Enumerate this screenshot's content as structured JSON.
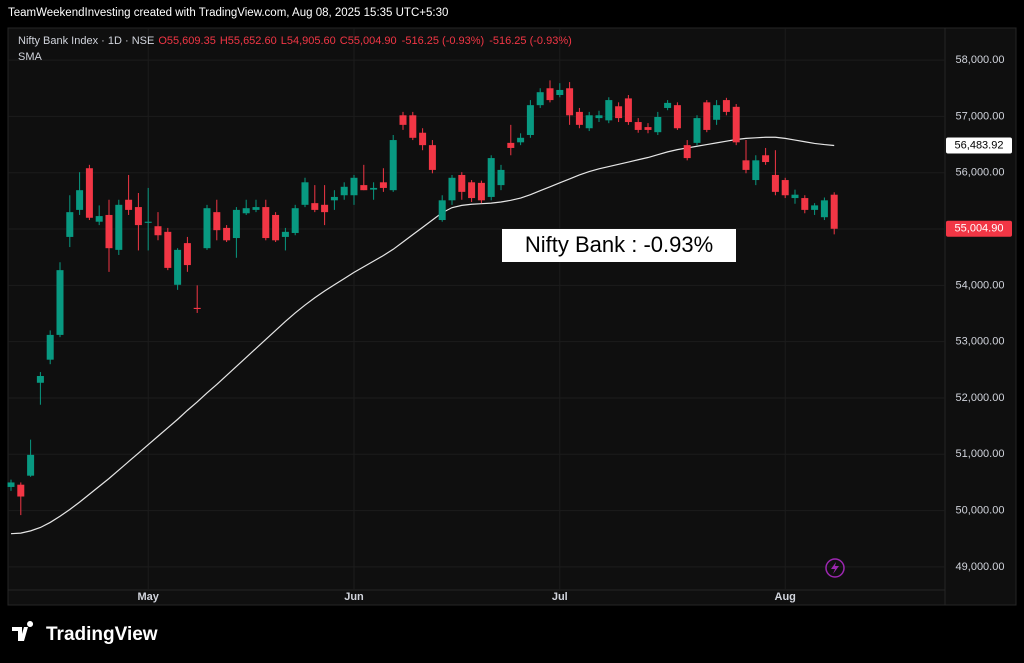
{
  "header": "TeamWeekendInvesting created with TradingView.com, Aug 08, 2025 15:35 UTC+5:30",
  "brand": "TradingView",
  "chart_data": {
    "type": "candlestick",
    "legend": {
      "title": "Nifty Bank Index · 1D · NSE",
      "open": "O55,609.35",
      "high": "H55,652.60",
      "low": "L54,905.60",
      "close": "C55,004.90",
      "change": "-516.25 (-0.93%)",
      "change_repeat": "-516.25 (-0.93%)"
    },
    "annotation": "Nifty Bank : -0.93%",
    "up_color": "#089981",
    "down_color": "#f23645",
    "grid": true,
    "categories": [
      null,
      null,
      null,
      null,
      null,
      null,
      null,
      null,
      null,
      null,
      null,
      null,
      null,
      null,
      "May",
      null,
      null,
      null,
      null,
      null,
      null,
      null,
      null,
      null,
      null,
      null,
      null,
      null,
      null,
      null,
      null,
      null,
      null,
      null,
      null,
      "Jun",
      null,
      null,
      null,
      null,
      null,
      null,
      null,
      null,
      null,
      null,
      null,
      null,
      null,
      null,
      null,
      null,
      null,
      null,
      null,
      null,
      "Jul",
      null,
      null,
      null,
      null,
      null,
      null,
      null,
      null,
      null,
      null,
      null,
      null,
      null,
      null,
      null,
      null,
      null,
      null,
      null,
      null,
      null,
      null,
      "Aug",
      null,
      null,
      null,
      null,
      null
    ],
    "open": [
      50420,
      50460,
      50620,
      52270,
      52680,
      53120,
      54860,
      55340,
      56080,
      55130,
      55250,
      54630,
      55520,
      55390,
      55110,
      55050,
      54950,
      54010,
      54750,
      53600,
      54660,
      55300,
      55020,
      54840,
      55280,
      55340,
      55390,
      55250,
      54860,
      54930,
      55430,
      55460,
      55430,
      55510,
      55600,
      55600,
      55780,
      55700,
      55830,
      55690,
      57020,
      57020,
      56710,
      56490,
      55160,
      55510,
      55960,
      55830,
      55820,
      55570,
      55780,
      56530,
      56540,
      56670,
      57200,
      57500,
      57380,
      57500,
      57080,
      56790,
      56970,
      56930,
      57180,
      57320,
      56900,
      56810,
      56720,
      57150,
      57200,
      56490,
      56530,
      57250,
      56940,
      57290,
      57170,
      56220,
      55870,
      56310,
      55960,
      55870,
      55550,
      55550,
      55340,
      55210,
      55609.35
    ],
    "high": [
      50550,
      50500,
      51260,
      52460,
      53200,
      54410,
      55600,
      56010,
      56140,
      55420,
      55520,
      55520,
      55960,
      55640,
      55730,
      55300,
      55020,
      54660,
      54860,
      54000,
      55430,
      55520,
      55070,
      55390,
      55520,
      55520,
      55520,
      55300,
      55020,
      55430,
      55910,
      55780,
      55780,
      55690,
      55830,
      55960,
      56140,
      55830,
      56080,
      56670,
      57080,
      57080,
      56790,
      56580,
      55600,
      55960,
      56010,
      55870,
      55860,
      56310,
      56140,
      56850,
      56700,
      57290,
      57500,
      57640,
      57590,
      57610,
      57150,
      57080,
      57100,
      57340,
      57250,
      57380,
      56970,
      56880,
      57080,
      57290,
      57250,
      56580,
      57020,
      57290,
      57290,
      57330,
      57220,
      56580,
      56310,
      56440,
      56400,
      55910,
      55700,
      55600,
      55460,
      55560,
      55652.6
    ],
    "low": [
      50350,
      49920,
      50600,
      51880,
      52600,
      53080,
      54680,
      55250,
      55160,
      55070,
      54240,
      54540,
      55250,
      54620,
      54620,
      54800,
      54270,
      53920,
      54240,
      53510,
      54630,
      54800,
      54770,
      54490,
      55250,
      55300,
      54800,
      54770,
      54620,
      54890,
      55390,
      55300,
      55070,
      55340,
      55520,
      55430,
      55690,
      55520,
      55660,
      55660,
      56760,
      56580,
      56400,
      55990,
      55130,
      55430,
      55520,
      55480,
      55460,
      55510,
      55690,
      56310,
      56490,
      56620,
      57150,
      57250,
      57340,
      56850,
      56790,
      56740,
      56900,
      56880,
      56900,
      56850,
      56710,
      56700,
      56670,
      57110,
      56760,
      56220,
      56490,
      56720,
      56850,
      57020,
      56490,
      55990,
      55780,
      56140,
      55600,
      55550,
      55450,
      55280,
      55250,
      55160,
      54905.6
    ],
    "close": [
      50500,
      50250,
      50990,
      52390,
      53120,
      54270,
      55300,
      55690,
      55200,
      55230,
      54660,
      55430,
      55340,
      55070,
      55130,
      54890,
      54310,
      54630,
      54360,
      53580,
      55370,
      54980,
      54800,
      55340,
      55370,
      55390,
      54840,
      54800,
      54950,
      55370,
      55830,
      55340,
      55300,
      55570,
      55750,
      55910,
      55690,
      55730,
      55730,
      56580,
      56850,
      56620,
      56490,
      56050,
      55510,
      55910,
      55660,
      55550,
      55510,
      56260,
      56050,
      56440,
      56620,
      57200,
      57430,
      57290,
      57470,
      57020,
      56850,
      57020,
      57020,
      57290,
      56970,
      56900,
      56760,
      56760,
      56990,
      57240,
      56790,
      56260,
      56970,
      56760,
      57200,
      57080,
      56540,
      56050,
      56220,
      56190,
      55660,
      55600,
      55610,
      55340,
      55420,
      55510,
      55004.9
    ],
    "sma": {
      "name": "SMA",
      "color": "#e6e6e6",
      "values": [
        49590,
        49600,
        49640,
        49700,
        49790,
        49900,
        50020,
        50150,
        50290,
        50430,
        50570,
        50720,
        50870,
        51020,
        51170,
        51320,
        51470,
        51620,
        51780,
        51930,
        52090,
        52240,
        52400,
        52560,
        52720,
        52880,
        53040,
        53200,
        53360,
        53510,
        53650,
        53780,
        53900,
        54010,
        54120,
        54230,
        54330,
        54430,
        54530,
        54640,
        54770,
        54900,
        55030,
        55160,
        55290,
        55380,
        55420,
        55440,
        55450,
        55460,
        55480,
        55510,
        55550,
        55610,
        55680,
        55750,
        55820,
        55890,
        55960,
        56020,
        56070,
        56110,
        56150,
        56190,
        56230,
        56270,
        56320,
        56370,
        56410,
        56440,
        56470,
        56500,
        56530,
        56560,
        56590,
        56610,
        56620,
        56630,
        56630,
        56610,
        56580,
        56550,
        56520,
        56500,
        56483.92
      ]
    },
    "price_labels": {
      "sma": "56,483.92",
      "close": "55,004.90"
    },
    "ylim": [
      48590,
      58570
    ],
    "yticks": [
      {
        "value": 49000,
        "label": "49,000.00"
      },
      {
        "value": 50000,
        "label": "50,000.00"
      },
      {
        "value": 51000,
        "label": "51,000.00"
      },
      {
        "value": 52000,
        "label": "52,000.00"
      },
      {
        "value": 53000,
        "label": "53,000.00"
      },
      {
        "value": 54000,
        "label": "54,000.00"
      },
      {
        "value": 55000,
        "label": "55,000.00"
      },
      {
        "value": 56000,
        "label": "56,000.00"
      },
      {
        "value": 57000,
        "label": "57,000.00"
      },
      {
        "value": 58000,
        "label": "58,000.00"
      }
    ]
  }
}
